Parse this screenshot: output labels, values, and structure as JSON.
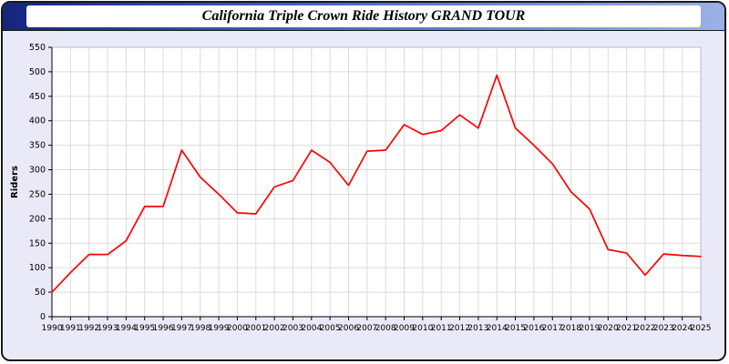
{
  "window": {
    "title": "California Triple Crown Ride History GRAND TOUR"
  },
  "chart_data": {
    "type": "line",
    "title": "California Triple Crown Ride History GRAND TOUR",
    "xlabel": "",
    "ylabel": "Riders",
    "ylim": [
      0,
      550
    ],
    "ytick_step": 50,
    "grid": true,
    "legend_position": "none",
    "line_color": "#ff0000",
    "plot_bg": "#ffffff",
    "panel_bg": "#e9e9f7",
    "grid_color": "#dcdcdc",
    "x": [
      "1990",
      "1991",
      "1992",
      "1993",
      "1994",
      "1995",
      "1996",
      "1997",
      "1998",
      "1999",
      "2000",
      "2001",
      "2002",
      "2003",
      "2004",
      "2005",
      "2006",
      "2007",
      "2008",
      "2009",
      "2010",
      "2011",
      "2012",
      "2013",
      "2014",
      "2015",
      "2016",
      "2017",
      "2018",
      "2019",
      "2020",
      "2021",
      "2022",
      "2023",
      "2024",
      "2025"
    ],
    "series": [
      {
        "name": "Riders",
        "color": "#ff0000",
        "values": [
          50,
          90,
          127,
          127,
          155,
          225,
          225,
          340,
          285,
          250,
          212,
          210,
          265,
          278,
          340,
          315,
          268,
          338,
          340,
          392,
          372,
          380,
          412,
          385,
          493,
          385,
          350,
          312,
          255,
          220,
          137,
          130,
          85,
          128,
          125,
          123
        ]
      }
    ]
  }
}
